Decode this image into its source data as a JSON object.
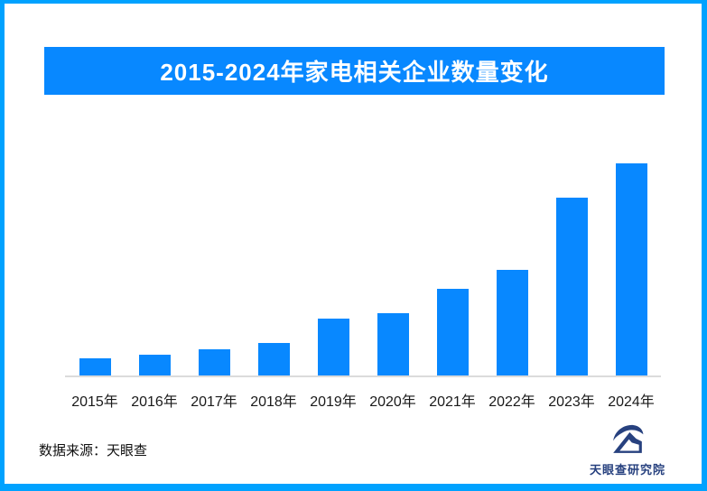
{
  "frame": {
    "border_color": "#00A2FF",
    "background": "#FFFFFF"
  },
  "banner": {
    "title": "2015-2024年家电相关企业数量变化",
    "background": "#0888FF",
    "text_color": "#FFFFFF"
  },
  "chart_data": {
    "type": "bar",
    "title": "2015-2024年家电相关企业数量变化",
    "categories": [
      "2015年",
      "2016年",
      "2017年",
      "2018年",
      "2019年",
      "2020年",
      "2021年",
      "2022年",
      "2023年",
      "2024年"
    ],
    "values": [
      20,
      24,
      30,
      37,
      64,
      70,
      97,
      118,
      198,
      236
    ],
    "values_note": "no numeric y-axis shown in source; values are relative bar heights estimated in pixels",
    "bar_color": "#0888FF",
    "axis_line_color": "#DBDBDB",
    "xlabel": "",
    "ylabel": "",
    "ylim": [
      0,
      250
    ],
    "grid": false,
    "legend": false
  },
  "footer": {
    "source_label": "数据来源：天眼查"
  },
  "logo": {
    "text": "天眼查研究院",
    "color": "#27417F",
    "icon": "tianyancha-eye-icon"
  }
}
